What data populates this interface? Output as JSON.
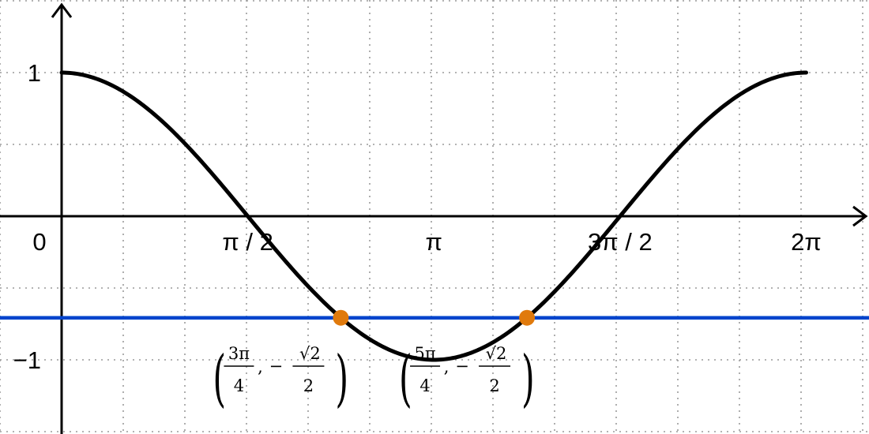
{
  "chart_data": {
    "type": "line",
    "function": "cos(x)",
    "xlim": [
      0,
      6.2832
    ],
    "ylim": [
      -1.5,
      1.9
    ],
    "grid": true,
    "x_ticks": [
      {
        "value": 0,
        "label": "0"
      },
      {
        "value": 1.5708,
        "label": "π / 2"
      },
      {
        "value": 3.1416,
        "label": "π"
      },
      {
        "value": 4.7124,
        "label": "3π / 2"
      },
      {
        "value": 6.2832,
        "label": "2π"
      }
    ],
    "y_ticks": [
      {
        "value": 1,
        "label": "1"
      },
      {
        "value": -1,
        "label": "−1"
      }
    ],
    "series": [
      {
        "color": "#000000",
        "x_start": 0,
        "x_end": 6.2832
      }
    ],
    "horizontal_line": {
      "y": -0.7071,
      "color": "#0044cc"
    },
    "points": [
      {
        "x": 2.3562,
        "y": -0.7071,
        "color": "#e07a0c",
        "label": {
          "x_num": "3π",
          "x_den": "4",
          "y_sign": "−",
          "y_num": "√2",
          "y_den": "2"
        }
      },
      {
        "x": 3.927,
        "y": -0.7071,
        "color": "#e07a0c",
        "label": {
          "x_num": "5π",
          "x_den": "4",
          "y_sign": "−",
          "y_num": "√2",
          "y_den": "2"
        }
      }
    ]
  }
}
